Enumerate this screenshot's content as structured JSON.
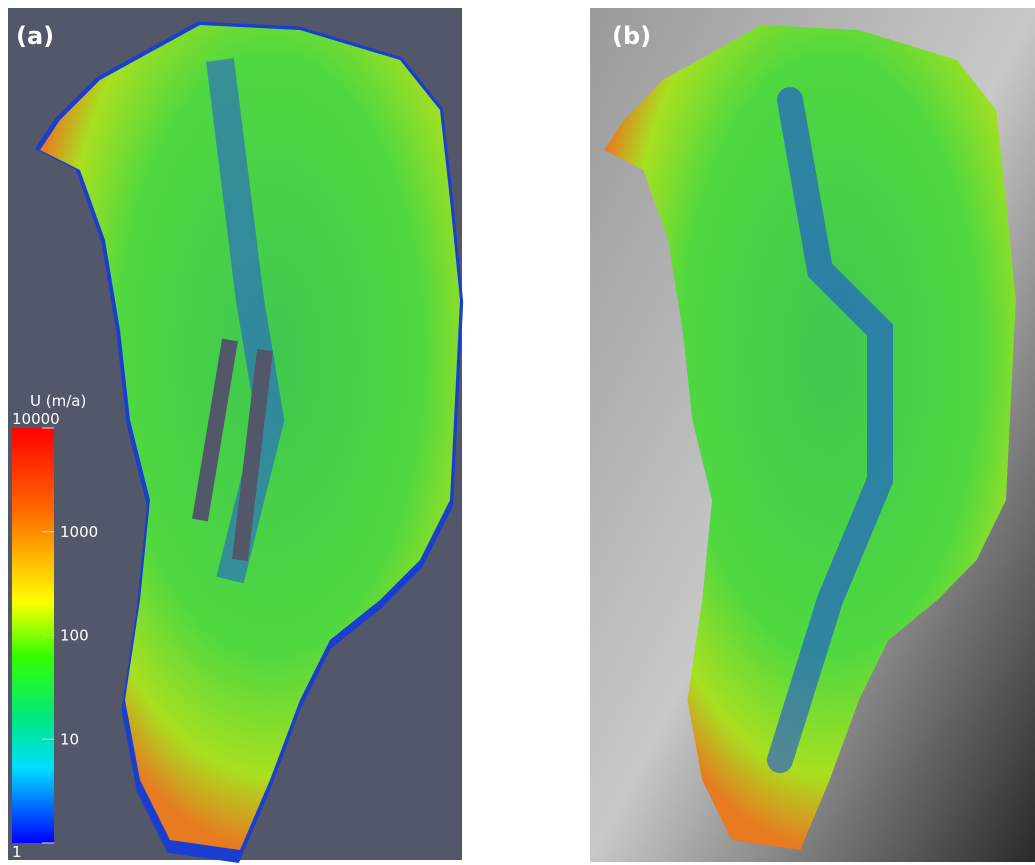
{
  "panels": [
    {
      "label": "(a)"
    },
    {
      "label": "(b)"
    }
  ],
  "colorbar": {
    "title": "U (m/a)",
    "ticks": [
      10000,
      1000,
      100,
      10,
      1
    ]
  }
}
